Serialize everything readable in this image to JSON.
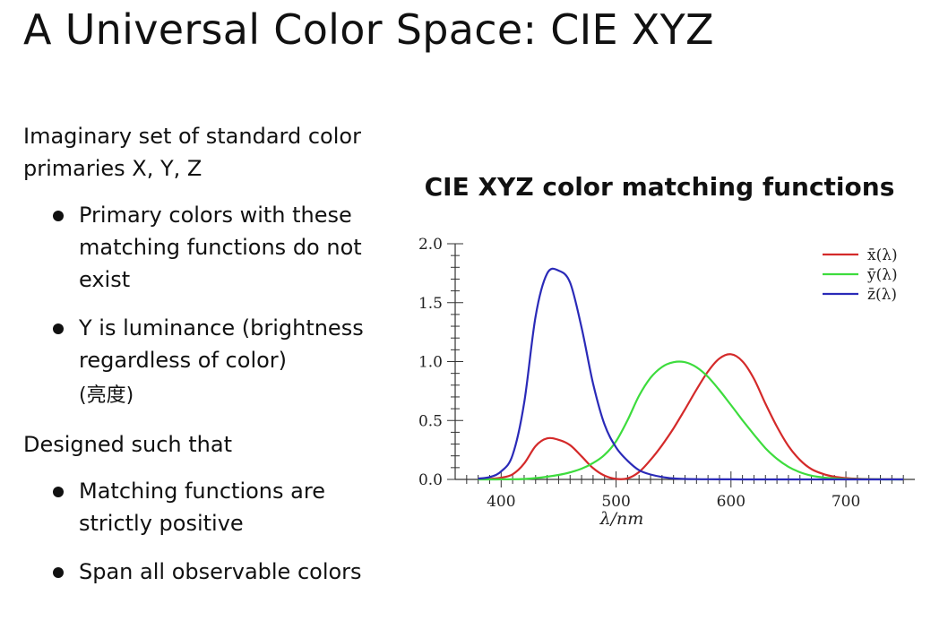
{
  "slide": {
    "title": "A Universal Color Space: CIE XYZ"
  },
  "left": {
    "intro_line1": "Imaginary set of standard color",
    "intro_line2": "primaries X, Y, Z",
    "bullets_a": [
      {
        "line1": "Primary colors with these",
        "line2": "matching functions do not",
        "line3": "exist"
      },
      {
        "line1": "Y is luminance (brightness",
        "line2": "regardless of color)",
        "note": "(亮度)"
      }
    ],
    "designed": "Designed such that",
    "bullets_b": [
      {
        "line1": "Matching functions are",
        "line2": "strictly positive"
      },
      {
        "line1": "Span all observable colors"
      }
    ]
  },
  "chart_data": {
    "type": "line",
    "title": "CIE XYZ color matching functions",
    "xlabel": "λ/nm",
    "ylabel": "",
    "xlim": [
      360,
      760
    ],
    "ylim": [
      0,
      2.0
    ],
    "xticks": [
      400,
      500,
      600,
      700
    ],
    "yticks": [
      0.0,
      0.5,
      1.0,
      1.5,
      2.0
    ],
    "ytick_labels": [
      "0.0",
      "0.5",
      "1.0",
      "1.5",
      "2.0"
    ],
    "legend_position": "top-right",
    "x": [
      380,
      390,
      400,
      410,
      420,
      430,
      440,
      450,
      460,
      470,
      480,
      490,
      500,
      510,
      520,
      530,
      540,
      550,
      560,
      570,
      580,
      590,
      600,
      610,
      620,
      630,
      640,
      650,
      660,
      670,
      680,
      690,
      700,
      710,
      720,
      730,
      740,
      750
    ],
    "series": [
      {
        "name": "x̄(λ)",
        "color": "#d42a2a",
        "values": [
          0.0014,
          0.0042,
          0.0143,
          0.0435,
          0.1344,
          0.2839,
          0.3483,
          0.3362,
          0.2908,
          0.1954,
          0.0956,
          0.032,
          0.0049,
          0.0093,
          0.0633,
          0.1655,
          0.2904,
          0.4334,
          0.5945,
          0.7621,
          0.9163,
          1.0263,
          1.0622,
          1.0026,
          0.8544,
          0.6424,
          0.4479,
          0.2835,
          0.1649,
          0.0874,
          0.0468,
          0.0227,
          0.0114,
          0.0058,
          0.0029,
          0.0014,
          0.0007,
          0.0003
        ]
      },
      {
        "name": "ȳ(λ)",
        "color": "#3ddc3d",
        "values": [
          0.0,
          0.0001,
          0.0004,
          0.0012,
          0.004,
          0.0116,
          0.023,
          0.038,
          0.06,
          0.091,
          0.139,
          0.208,
          0.323,
          0.503,
          0.71,
          0.862,
          0.954,
          0.995,
          0.995,
          0.952,
          0.87,
          0.757,
          0.631,
          0.503,
          0.381,
          0.265,
          0.175,
          0.107,
          0.061,
          0.032,
          0.017,
          0.0082,
          0.0041,
          0.0021,
          0.001,
          0.0005,
          0.0002,
          0.0001
        ]
      },
      {
        "name": "z̄(λ)",
        "color": "#2a2ab8",
        "values": [
          0.0065,
          0.0201,
          0.0679,
          0.2074,
          0.6456,
          1.3856,
          1.7471,
          1.7721,
          1.6692,
          1.2876,
          0.813,
          0.4652,
          0.272,
          0.1582,
          0.0782,
          0.0422,
          0.0203,
          0.0087,
          0.0039,
          0.0021,
          0.0017,
          0.0011,
          0.0008,
          0.0003,
          0.0002,
          0.0,
          0.0,
          0.0,
          0.0,
          0.0,
          0.0,
          0.0,
          0.0,
          0.0,
          0.0,
          0.0,
          0.0,
          0.0
        ]
      }
    ]
  }
}
